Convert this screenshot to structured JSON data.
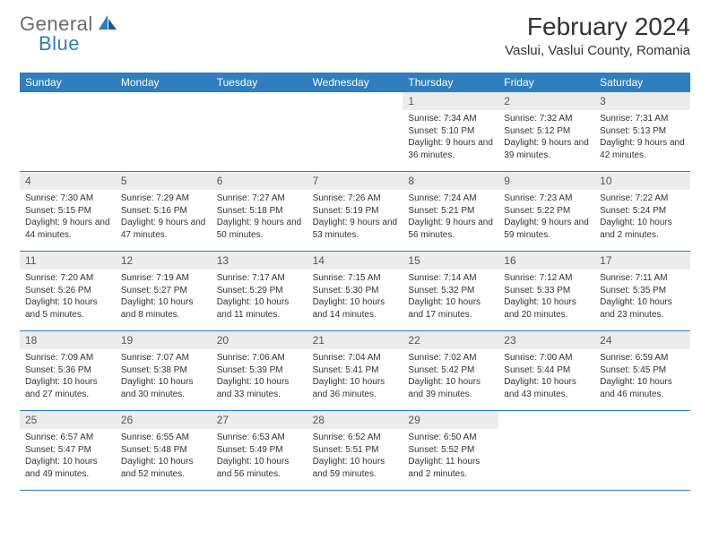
{
  "logo": {
    "text1": "General",
    "text2": "Blue"
  },
  "title": "February 2024",
  "location": "Vaslui, Vaslui County, Romania",
  "dayNames": [
    "Sunday",
    "Monday",
    "Tuesday",
    "Wednesday",
    "Thursday",
    "Friday",
    "Saturday"
  ],
  "header_bg": "#2f7ebf",
  "daynum_bg": "#ececec",
  "weeks": [
    [
      null,
      null,
      null,
      null,
      {
        "n": "1",
        "sr": "7:34 AM",
        "ss": "5:10 PM",
        "dl": "9 hours and 36 minutes."
      },
      {
        "n": "2",
        "sr": "7:32 AM",
        "ss": "5:12 PM",
        "dl": "9 hours and 39 minutes."
      },
      {
        "n": "3",
        "sr": "7:31 AM",
        "ss": "5:13 PM",
        "dl": "9 hours and 42 minutes."
      }
    ],
    [
      {
        "n": "4",
        "sr": "7:30 AM",
        "ss": "5:15 PM",
        "dl": "9 hours and 44 minutes."
      },
      {
        "n": "5",
        "sr": "7:29 AM",
        "ss": "5:16 PM",
        "dl": "9 hours and 47 minutes."
      },
      {
        "n": "6",
        "sr": "7:27 AM",
        "ss": "5:18 PM",
        "dl": "9 hours and 50 minutes."
      },
      {
        "n": "7",
        "sr": "7:26 AM",
        "ss": "5:19 PM",
        "dl": "9 hours and 53 minutes."
      },
      {
        "n": "8",
        "sr": "7:24 AM",
        "ss": "5:21 PM",
        "dl": "9 hours and 56 minutes."
      },
      {
        "n": "9",
        "sr": "7:23 AM",
        "ss": "5:22 PM",
        "dl": "9 hours and 59 minutes."
      },
      {
        "n": "10",
        "sr": "7:22 AM",
        "ss": "5:24 PM",
        "dl": "10 hours and 2 minutes."
      }
    ],
    [
      {
        "n": "11",
        "sr": "7:20 AM",
        "ss": "5:26 PM",
        "dl": "10 hours and 5 minutes."
      },
      {
        "n": "12",
        "sr": "7:19 AM",
        "ss": "5:27 PM",
        "dl": "10 hours and 8 minutes."
      },
      {
        "n": "13",
        "sr": "7:17 AM",
        "ss": "5:29 PM",
        "dl": "10 hours and 11 minutes."
      },
      {
        "n": "14",
        "sr": "7:15 AM",
        "ss": "5:30 PM",
        "dl": "10 hours and 14 minutes."
      },
      {
        "n": "15",
        "sr": "7:14 AM",
        "ss": "5:32 PM",
        "dl": "10 hours and 17 minutes."
      },
      {
        "n": "16",
        "sr": "7:12 AM",
        "ss": "5:33 PM",
        "dl": "10 hours and 20 minutes."
      },
      {
        "n": "17",
        "sr": "7:11 AM",
        "ss": "5:35 PM",
        "dl": "10 hours and 23 minutes."
      }
    ],
    [
      {
        "n": "18",
        "sr": "7:09 AM",
        "ss": "5:36 PM",
        "dl": "10 hours and 27 minutes."
      },
      {
        "n": "19",
        "sr": "7:07 AM",
        "ss": "5:38 PM",
        "dl": "10 hours and 30 minutes."
      },
      {
        "n": "20",
        "sr": "7:06 AM",
        "ss": "5:39 PM",
        "dl": "10 hours and 33 minutes."
      },
      {
        "n": "21",
        "sr": "7:04 AM",
        "ss": "5:41 PM",
        "dl": "10 hours and 36 minutes."
      },
      {
        "n": "22",
        "sr": "7:02 AM",
        "ss": "5:42 PM",
        "dl": "10 hours and 39 minutes."
      },
      {
        "n": "23",
        "sr": "7:00 AM",
        "ss": "5:44 PM",
        "dl": "10 hours and 43 minutes."
      },
      {
        "n": "24",
        "sr": "6:59 AM",
        "ss": "5:45 PM",
        "dl": "10 hours and 46 minutes."
      }
    ],
    [
      {
        "n": "25",
        "sr": "6:57 AM",
        "ss": "5:47 PM",
        "dl": "10 hours and 49 minutes."
      },
      {
        "n": "26",
        "sr": "6:55 AM",
        "ss": "5:48 PM",
        "dl": "10 hours and 52 minutes."
      },
      {
        "n": "27",
        "sr": "6:53 AM",
        "ss": "5:49 PM",
        "dl": "10 hours and 56 minutes."
      },
      {
        "n": "28",
        "sr": "6:52 AM",
        "ss": "5:51 PM",
        "dl": "10 hours and 59 minutes."
      },
      {
        "n": "29",
        "sr": "6:50 AM",
        "ss": "5:52 PM",
        "dl": "11 hours and 2 minutes."
      },
      null,
      null
    ]
  ]
}
